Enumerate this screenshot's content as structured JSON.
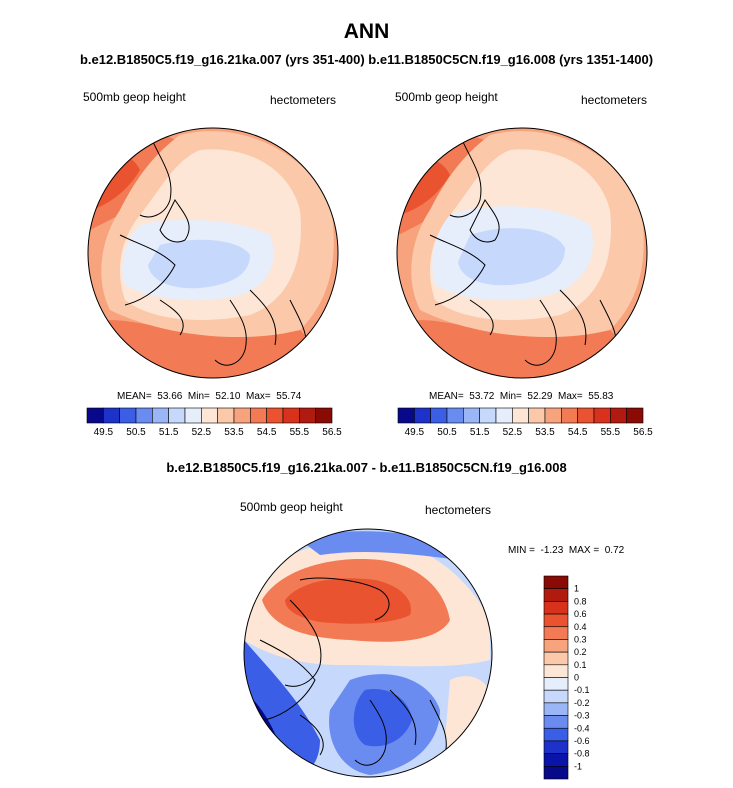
{
  "figure": {
    "title": "ANN",
    "subtitle": "b.e12.B1850C5.f19_g16.21ka.007 (yrs 351-400) b.e11.B1850C5CN.f19_g16.008 (yrs 1351-1400)",
    "diff_title": "b.e12.B1850C5.f19_g16.21ka.007 - b.e11.B1850C5CN.f19_g16.008"
  },
  "chart_data": [
    {
      "type": "heatmap",
      "projection": "north-polar-stereographic",
      "variable": "500mb geop height",
      "units": "hectometers",
      "case": "b.e12.B1850C5.f19_g16.21ka.007 (yrs 351-400)",
      "stats": {
        "mean_label": "MEAN=",
        "mean": "53.66",
        "min_label": "Min=",
        "min": "52.10",
        "max_label": "Max=",
        "max": "55.74"
      },
      "colorbar": {
        "orientation": "horizontal",
        "ticks": [
          "49.5",
          "50.5",
          "51.5",
          "52.5",
          "53.5",
          "54.5",
          "55.5",
          "56.5"
        ],
        "colors": [
          "#08088a",
          "#1c32c8",
          "#3a5fe6",
          "#6a8cf0",
          "#9ab6f6",
          "#c6d8fb",
          "#e6eefc",
          "#fde6d6",
          "#fbc9aa",
          "#f7a37e",
          "#f27b55",
          "#e95330",
          "#d8321c",
          "#b11a0f",
          "#8a0a06"
        ]
      }
    },
    {
      "type": "heatmap",
      "projection": "north-polar-stereographic",
      "variable": "500mb geop height",
      "units": "hectometers",
      "case": "b.e11.B1850C5CN.f19_g16.008 (yrs 1351-1400)",
      "stats": {
        "mean_label": "MEAN=",
        "mean": "53.72",
        "min_label": "Min=",
        "min": "52.29",
        "max_label": "Max=",
        "max": "55.83"
      },
      "colorbar": {
        "orientation": "horizontal",
        "ticks": [
          "49.5",
          "50.5",
          "51.5",
          "52.5",
          "53.5",
          "54.5",
          "55.5",
          "56.5"
        ],
        "colors": [
          "#08088a",
          "#1c32c8",
          "#3a5fe6",
          "#6a8cf0",
          "#9ab6f6",
          "#c6d8fb",
          "#e6eefc",
          "#fde6d6",
          "#fbc9aa",
          "#f7a37e",
          "#f27b55",
          "#e95330",
          "#d8321c",
          "#b11a0f",
          "#8a0a06"
        ]
      }
    },
    {
      "type": "heatmap",
      "projection": "north-polar-stereographic",
      "variable": "500mb geop height",
      "units": "hectometers",
      "case": "difference",
      "stats": {
        "min_label": "MIN =",
        "min": "-1.23",
        "max_label": "MAX =",
        "max": "0.72"
      },
      "colorbar": {
        "orientation": "vertical",
        "ticks": [
          "1",
          "0.8",
          "0.6",
          "0.4",
          "0.3",
          "0.2",
          "0.1",
          "0",
          "-0.1",
          "-0.2",
          "-0.3",
          "-0.4",
          "-0.6",
          "-0.8",
          "-1"
        ],
        "colors": [
          "#8a0a06",
          "#b11a0f",
          "#d8321c",
          "#e95330",
          "#f27b55",
          "#f7a37e",
          "#fbc9aa",
          "#fde6d6",
          "#e6eefc",
          "#c6d8fb",
          "#9ab6f6",
          "#6a8cf0",
          "#3a5fe6",
          "#1c32c8",
          "#0a14a8",
          "#08088a"
        ]
      }
    }
  ]
}
